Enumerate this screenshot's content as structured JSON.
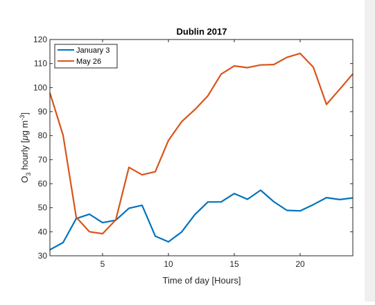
{
  "chart_data": {
    "type": "line",
    "title": "Dublin 2017",
    "xlabel": "Time of day [Hours]",
    "ylabel": {
      "prefix": "O",
      "sub": "3",
      "mid": " hourly [",
      "mu": "μ",
      "unit": "g m",
      "sup": "-3",
      "suffix": "]"
    },
    "xlim": [
      1,
      24
    ],
    "ylim": [
      30,
      120
    ],
    "xticks": [
      5,
      10,
      15,
      20
    ],
    "yticks": [
      30,
      40,
      50,
      60,
      70,
      80,
      90,
      100,
      110,
      120
    ],
    "x": [
      1,
      2,
      3,
      4,
      5,
      6,
      7,
      8,
      9,
      10,
      11,
      12,
      13,
      14,
      15,
      16,
      17,
      18,
      19,
      20,
      21,
      22,
      23,
      24
    ],
    "series": [
      {
        "name": "January 3",
        "color": "#0072BD",
        "values": [
          32.5,
          35.5,
          45.5,
          47.3,
          43.8,
          44.8,
          49.8,
          51.0,
          38.2,
          35.8,
          39.9,
          47.1,
          52.4,
          52.4,
          55.9,
          53.5,
          57.3,
          52.5,
          48.9,
          48.7,
          51.3,
          54.2,
          53.4,
          54.1
        ]
      },
      {
        "name": "May 26",
        "color": "#D95319",
        "values": [
          97.8,
          80.2,
          46.0,
          40.0,
          39.2,
          44.9,
          66.8,
          63.7,
          65.0,
          78.0,
          85.8,
          90.8,
          96.6,
          105.6,
          109.0,
          108.3,
          109.4,
          109.6,
          112.6,
          114.2,
          108.5,
          93.0,
          99.3,
          105.7
        ]
      }
    ],
    "legend": "top-left",
    "grid": false
  }
}
